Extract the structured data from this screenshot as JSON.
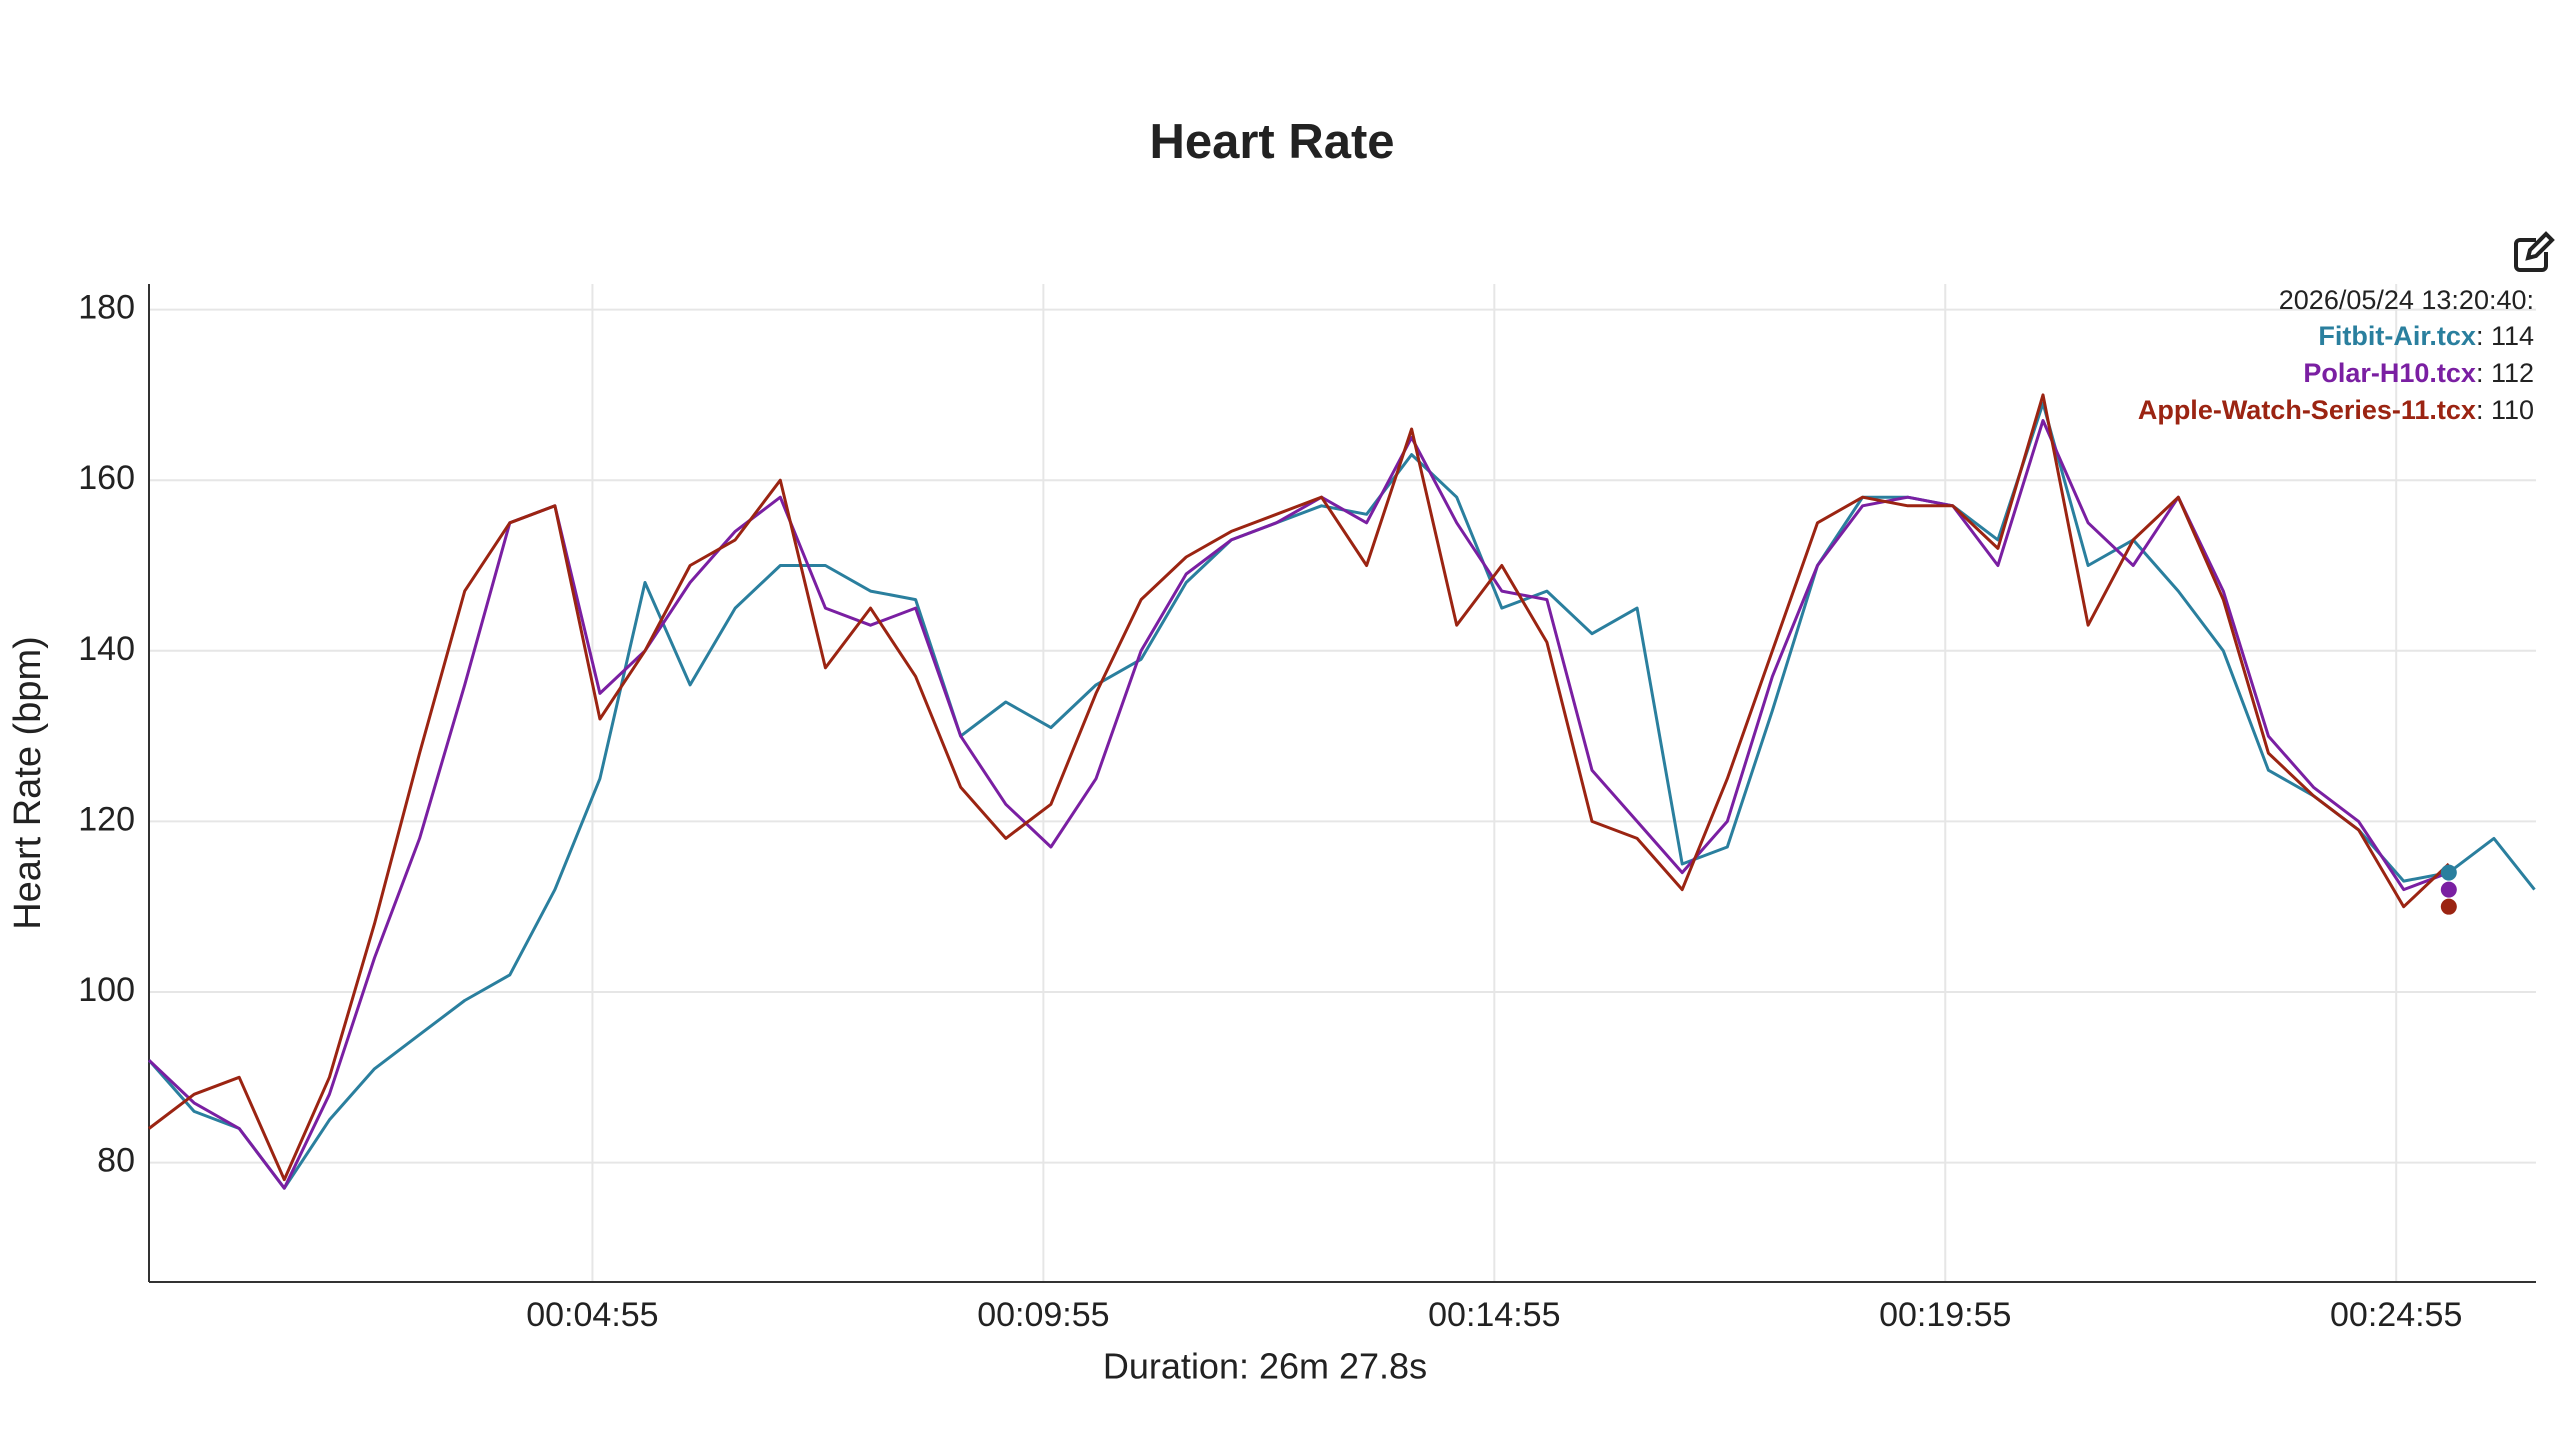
{
  "chart_data": {
    "type": "line",
    "title": "Heart Rate",
    "ylabel": "Heart Rate (bpm)",
    "xlabel": "Duration: 26m 27.8s",
    "x": [
      0,
      30,
      60,
      90,
      120,
      150,
      180,
      210,
      240,
      270,
      300,
      330,
      360,
      390,
      420,
      450,
      480,
      510,
      540,
      570,
      600,
      630,
      660,
      690,
      720,
      750,
      780,
      810,
      840,
      870,
      900,
      930,
      960,
      990,
      1020,
      1050,
      1080,
      1110,
      1140,
      1170,
      1200,
      1230,
      1260,
      1290,
      1320,
      1350,
      1380,
      1410,
      1440,
      1470,
      1500,
      1530,
      1560,
      1587
    ],
    "series": [
      {
        "name": "Fitbit-Air.tcx",
        "color": "#2a7f9e",
        "values": [
          92,
          86,
          84,
          77,
          85,
          91,
          95,
          99,
          102,
          112,
          125,
          148,
          136,
          145,
          150,
          150,
          147,
          146,
          130,
          134,
          131,
          136,
          139,
          148,
          153,
          155,
          157,
          156,
          163,
          158,
          145,
          147,
          142,
          145,
          115,
          117,
          133,
          150,
          158,
          158,
          157,
          153,
          169,
          150,
          153,
          147,
          140,
          126,
          123,
          119,
          113,
          114,
          118,
          112
        ]
      },
      {
        "name": "Polar-H10.tcx",
        "color": "#7a1fa2",
        "values": [
          92,
          87,
          84,
          77,
          88,
          104,
          118,
          136,
          155,
          157,
          135,
          140,
          148,
          154,
          158,
          145,
          143,
          145,
          130,
          122,
          117,
          125,
          140,
          149,
          153,
          155,
          158,
          155,
          165,
          155,
          147,
          146,
          126,
          120,
          114,
          120,
          137,
          150,
          157,
          158,
          157,
          150,
          167,
          155,
          150,
          158,
          147,
          130,
          124,
          120,
          112,
          114,
          null,
          null
        ]
      },
      {
        "name": "Apple-Watch-Series-11.tcx",
        "color": "#9b2412",
        "values": [
          84,
          88,
          90,
          78,
          90,
          108,
          128,
          147,
          155,
          157,
          132,
          140,
          150,
          153,
          160,
          138,
          145,
          137,
          124,
          118,
          122,
          135,
          146,
          151,
          154,
          156,
          158,
          150,
          166,
          143,
          150,
          141,
          120,
          118,
          112,
          125,
          140,
          155,
          158,
          157,
          157,
          152,
          170,
          143,
          153,
          158,
          146,
          128,
          123,
          119,
          110,
          115,
          null,
          null
        ]
      }
    ],
    "xlim": [
      0,
      1588
    ],
    "ylim": [
      66,
      183
    ],
    "xticks": [
      {
        "value": 295,
        "label": "00:04:55"
      },
      {
        "value": 595,
        "label": "00:09:55"
      },
      {
        "value": 895,
        "label": "00:14:55"
      },
      {
        "value": 1195,
        "label": "00:19:55"
      },
      {
        "value": 1495,
        "label": "00:24:55"
      }
    ],
    "yticks": [
      80,
      100,
      120,
      140,
      160,
      180
    ],
    "grid": true,
    "tooltip": {
      "title": "2026/05/24 13:20:40:",
      "separator": ": ",
      "values": [
        114,
        112,
        110
      ]
    }
  }
}
